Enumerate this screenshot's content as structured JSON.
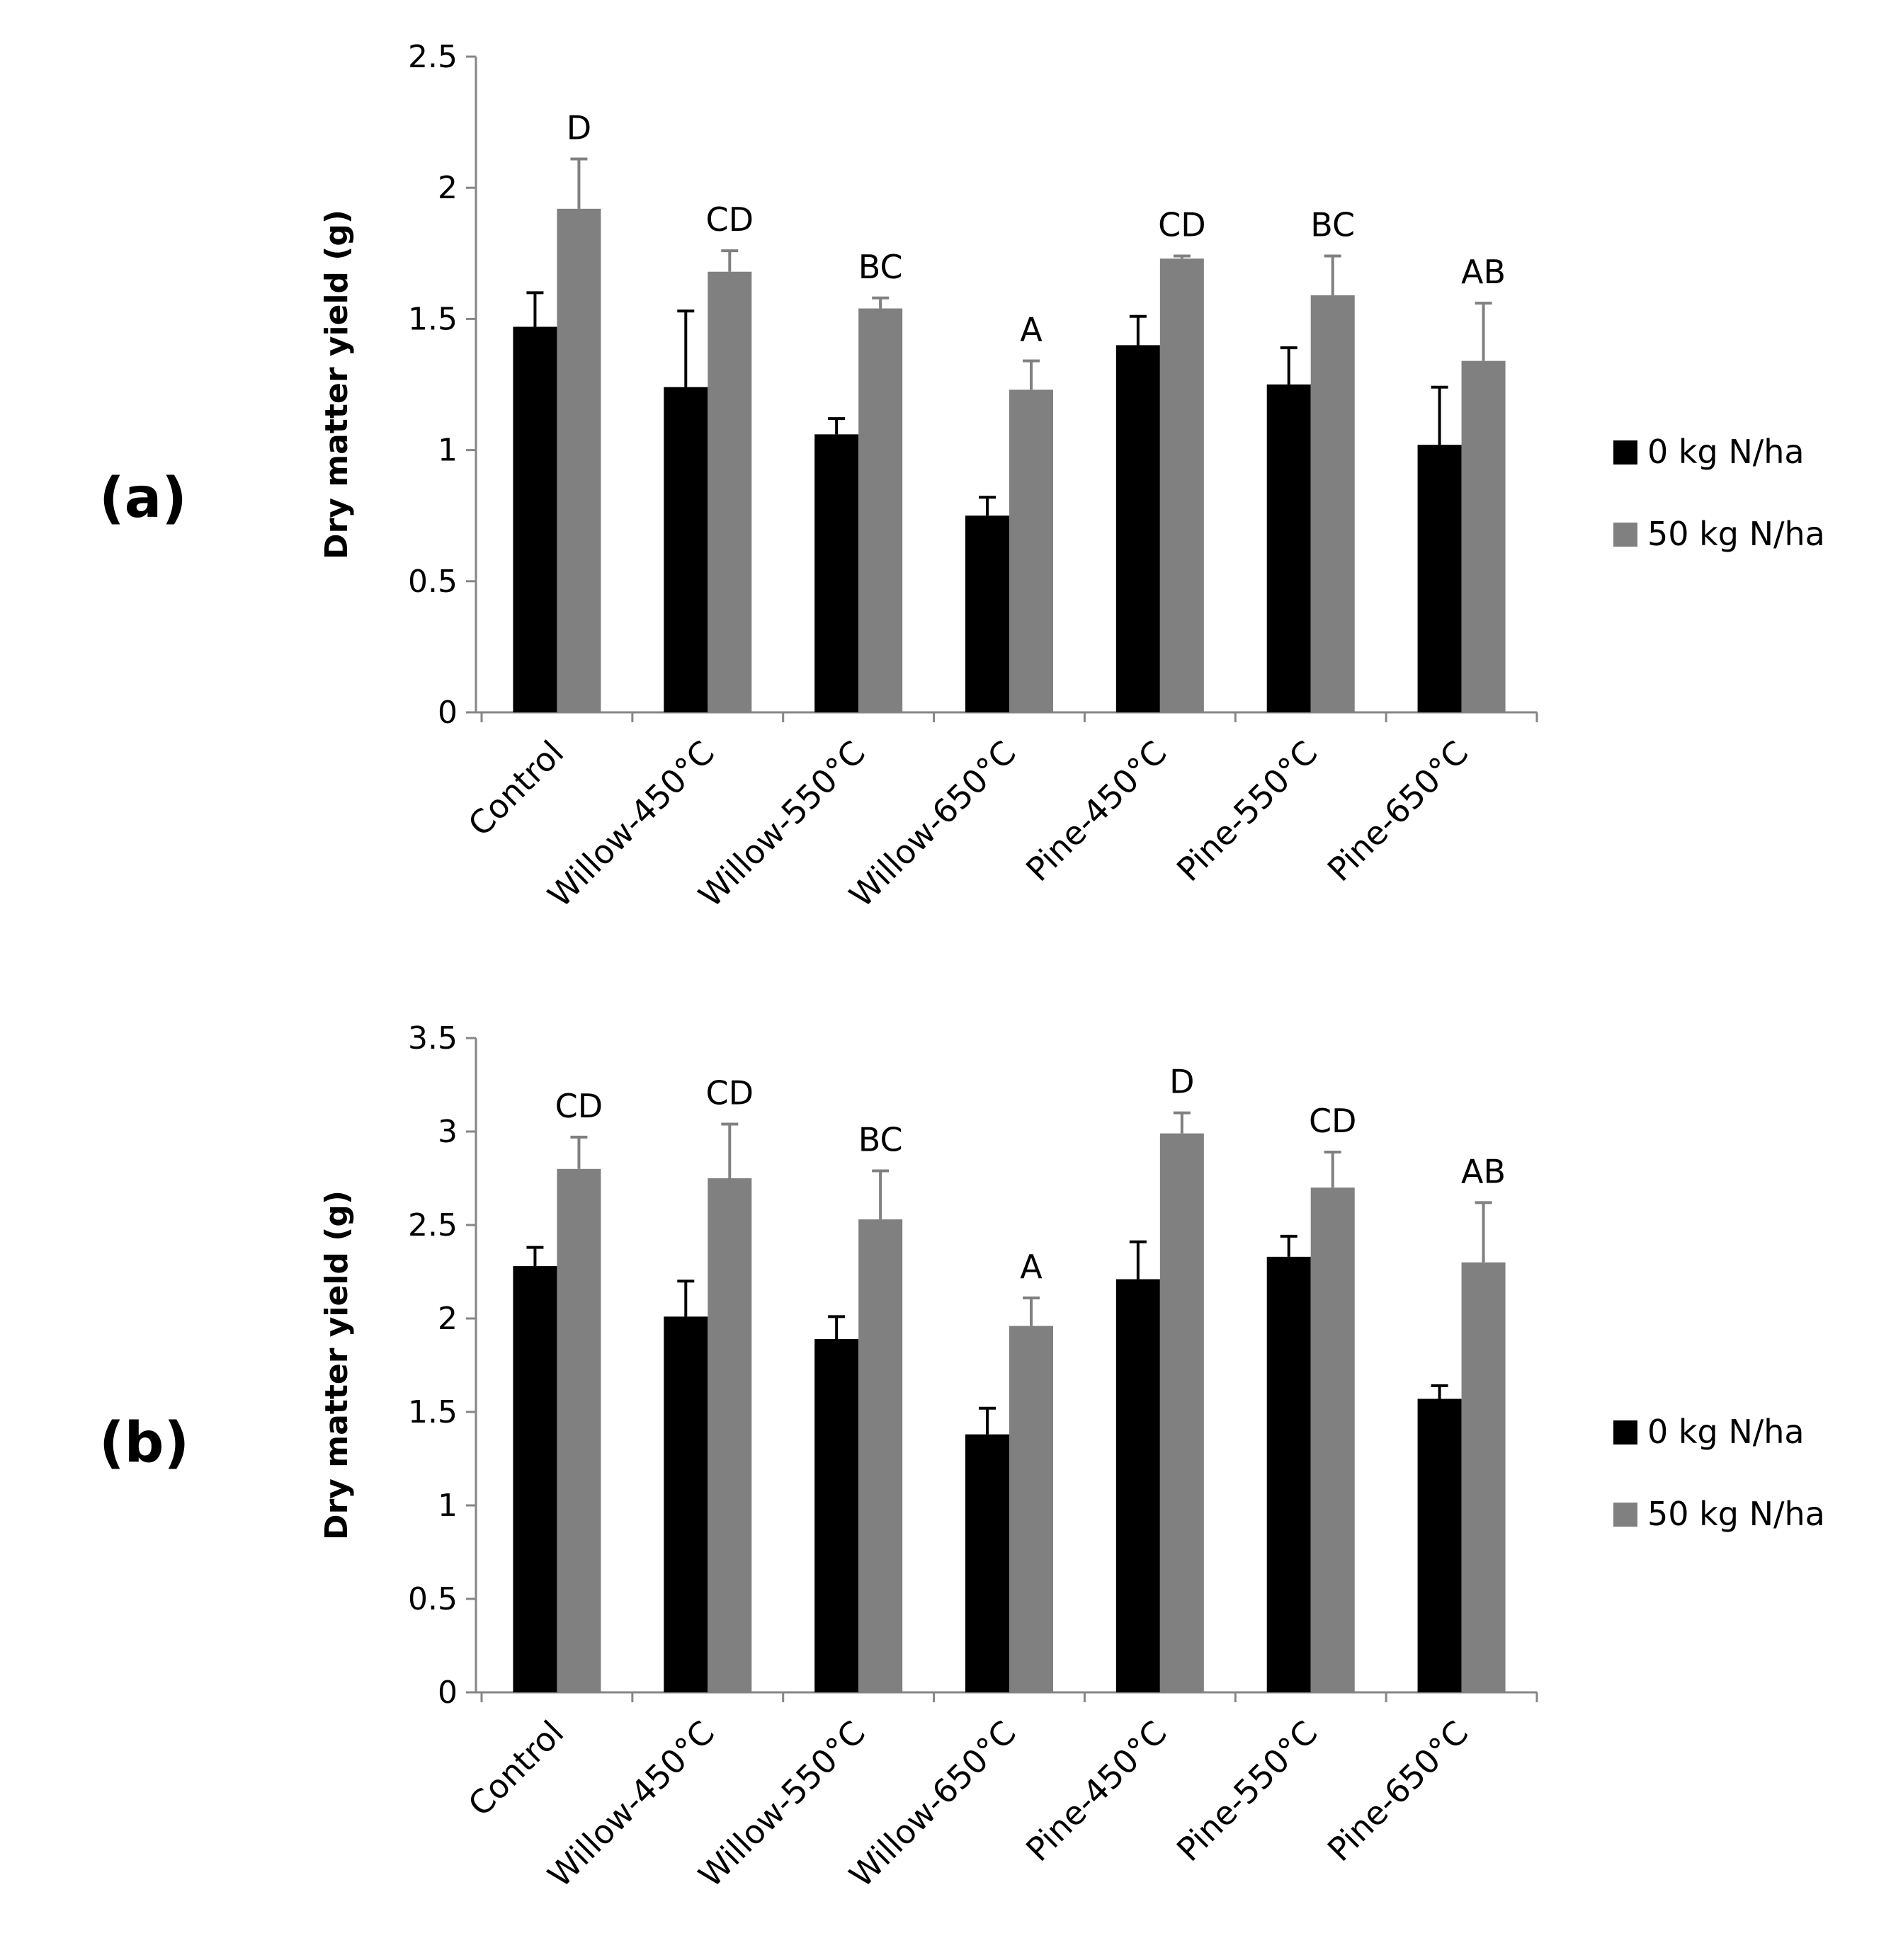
{
  "chart_data": [
    {
      "panel": "(a)",
      "type": "bar",
      "ylabel": "Dry matter yield (g)",
      "xlabel": "",
      "ylim": [
        0,
        2.5
      ],
      "ytick_step": 0.5,
      "ytick_labels": [
        "0",
        "0.5",
        "1",
        "1.5",
        "2",
        "2.5"
      ],
      "categories": [
        "Control",
        "Willow-450°C",
        "Willow-550°C",
        "Willow-650°C",
        "Pine-450°C",
        "Pine-550°C",
        "Pine-650°C"
      ],
      "series": [
        {
          "name": "0 kg N/ha",
          "color": "#000000",
          "values": [
            1.47,
            1.24,
            1.06,
            0.75,
            1.4,
            1.25,
            1.02
          ],
          "errors": [
            0.13,
            0.29,
            0.06,
            0.07,
            0.11,
            0.14,
            0.22
          ]
        },
        {
          "name": "50 kg N/ha",
          "color": "#808080",
          "values": [
            1.92,
            1.68,
            1.54,
            1.23,
            1.73,
            1.59,
            1.34
          ],
          "errors": [
            0.19,
            0.08,
            0.04,
            0.11,
            0.01,
            0.15,
            0.22
          ]
        }
      ],
      "annotations": [
        "D",
        "CD",
        "BC",
        "A",
        "CD",
        "BC",
        "AB"
      ],
      "legend": "right"
    },
    {
      "panel": "(b)",
      "type": "bar",
      "ylabel": "Dry matter yield (g)",
      "xlabel": "",
      "ylim": [
        0,
        3.5
      ],
      "ytick_step": 0.5,
      "ytick_labels": [
        "0",
        "0.5",
        "1",
        "1.5",
        "2",
        "2.5",
        "3",
        "3.5"
      ],
      "categories": [
        "Control",
        "Willow-450°C",
        "Willow-550°C",
        "Willow-650°C",
        "Pine-450°C",
        "Pine-550°C",
        "Pine-650°C"
      ],
      "series": [
        {
          "name": "0 kg N/ha",
          "color": "#000000",
          "values": [
            2.28,
            2.01,
            1.89,
            1.38,
            2.21,
            2.33,
            1.57
          ],
          "errors": [
            0.1,
            0.19,
            0.12,
            0.14,
            0.2,
            0.11,
            0.07
          ]
        },
        {
          "name": "50 kg N/ha",
          "color": "#808080",
          "values": [
            2.8,
            2.75,
            2.53,
            1.96,
            2.99,
            2.7,
            2.3
          ],
          "errors": [
            0.17,
            0.29,
            0.26,
            0.15,
            0.11,
            0.19,
            0.32
          ]
        }
      ],
      "annotations": [
        "CD",
        "CD",
        "BC",
        "A",
        "D",
        "CD",
        "AB"
      ],
      "legend": "right"
    }
  ]
}
